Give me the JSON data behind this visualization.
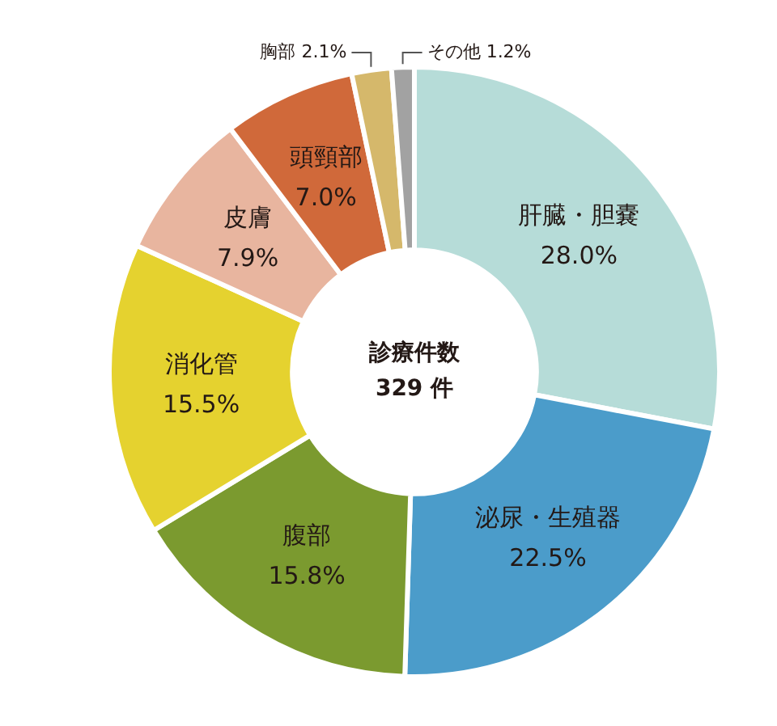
{
  "chart_data": {
    "type": "donut",
    "categories": [
      "肝臓・胆嚢",
      "泌尿・生殖器",
      "腹部",
      "消化管",
      "皮膚",
      "頭頸部",
      "胸部",
      "その他"
    ],
    "values": [
      28.0,
      22.5,
      15.8,
      15.5,
      7.9,
      7.0,
      2.1,
      1.2
    ],
    "value_labels": [
      "28.0%",
      "22.5%",
      "15.8%",
      "15.5%",
      "7.9%",
      "7.0%",
      "2.1%",
      "1.2%"
    ],
    "colors": [
      "#b6dcd8",
      "#4b9cca",
      "#7b9a2f",
      "#e5d22f",
      "#e8b59f",
      "#d0693a",
      "#d5b86b",
      "#a2a2a2"
    ],
    "annotations": [
      "診療件数",
      "329 件"
    ],
    "legend": false
  }
}
